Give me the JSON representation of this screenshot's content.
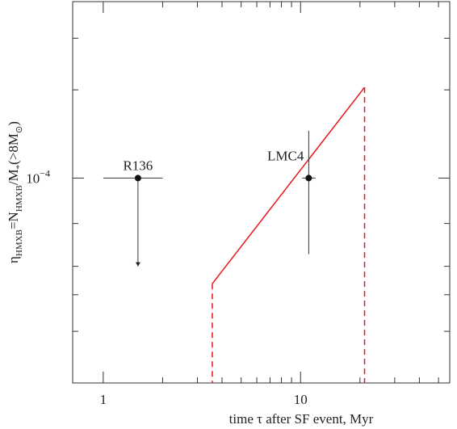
{
  "chart_data": {
    "type": "scatter",
    "xlabel": "time τ after SF event, Myr",
    "ylabel_parts": [
      {
        "text": "η"
      },
      {
        "text": "HMXB",
        "sub": true
      },
      {
        "text": "=N"
      },
      {
        "text": "HMXB",
        "sub": true
      },
      {
        "text": "/M"
      },
      {
        "text": "*",
        "sub": true
      },
      {
        "text": "(>8M"
      },
      {
        "text": "⊙",
        "sub": true
      },
      {
        "text": ")"
      }
    ],
    "log_x": true,
    "log_y": true,
    "xlim": [
      0.7,
      57
    ],
    "ylim": [
      2e-05,
      0.0004
    ],
    "xticks": [
      1,
      10
    ],
    "xminorticks": [
      2,
      3,
      4,
      5,
      6,
      7,
      8,
      9,
      20,
      30,
      40,
      50
    ],
    "yticks": [
      {
        "value": 0.0001,
        "label": "10",
        "exponent": "−4"
      }
    ],
    "yminorticks": [
      3e-05,
      4e-05,
      5e-05,
      7e-05,
      0.0002,
      0.0003
    ],
    "points": [
      {
        "name": "R136",
        "x": 1.5,
        "y": 0.0001,
        "x_low": 1,
        "x_high": 2,
        "y_low": 5e-05,
        "upper_limit": true,
        "label_position": "above"
      },
      {
        "name": "LMC4",
        "x": 11,
        "y": 0.0001,
        "x_low": 10.2,
        "x_high": 11.9,
        "y_low": 5.5e-05,
        "y_high": 0.000145,
        "upper_limit": false,
        "label_position": "left"
      }
    ],
    "line": {
      "color": "#e8141b",
      "x": [
        3.57,
        21.1
      ],
      "y": [
        4.36e-05,
        0.000204
      ],
      "drop_lines": "dashed"
    }
  }
}
